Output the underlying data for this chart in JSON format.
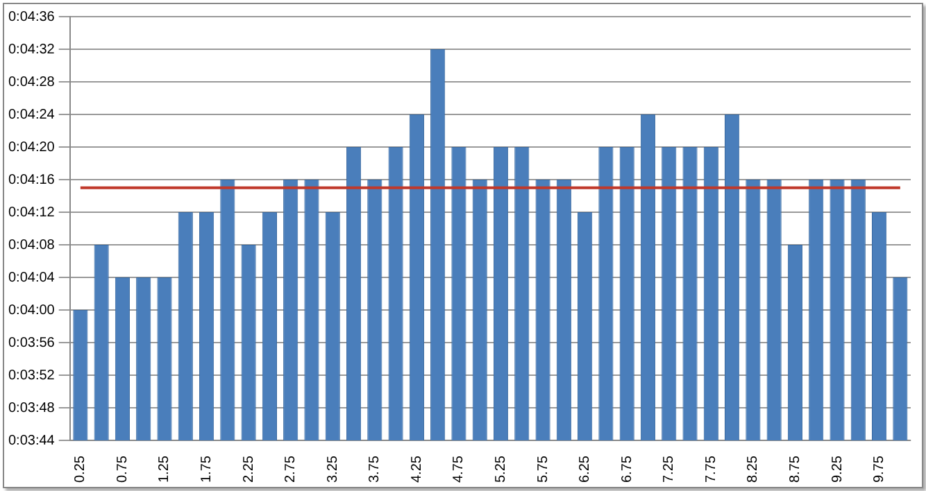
{
  "chart_data": {
    "type": "bar",
    "categories": [
      "0.25",
      null,
      "0.75",
      null,
      "1.25",
      null,
      "1.75",
      null,
      "2.25",
      null,
      "2.75",
      null,
      "3.25",
      null,
      "3.75",
      null,
      "4.25",
      null,
      "4.75",
      null,
      "5.25",
      null,
      "5.75",
      null,
      "6.25",
      null,
      "6.75",
      null,
      "7.25",
      null,
      "7.75",
      null,
      "8.25",
      null,
      "8.75",
      null,
      "9.25",
      null,
      "9.75",
      null
    ],
    "values": [
      240,
      248,
      244,
      244,
      244,
      252,
      252,
      256,
      248,
      252,
      256,
      256,
      252,
      260,
      256,
      260,
      264,
      272,
      260,
      256,
      260,
      260,
      256,
      256,
      252,
      260,
      260,
      264,
      260,
      260,
      260,
      264,
      256,
      256,
      248,
      256,
      256,
      256,
      252,
      244
    ],
    "color": "#4a7ebb",
    "ylim": [
      224,
      276
    ],
    "yticks": [
      {
        "value": 224,
        "label": "0:03:44"
      },
      {
        "value": 228,
        "label": "0:03:48"
      },
      {
        "value": 232,
        "label": "0:03:52"
      },
      {
        "value": 236,
        "label": "0:03:56"
      },
      {
        "value": 240,
        "label": "0:04:00"
      },
      {
        "value": 244,
        "label": "0:04:04"
      },
      {
        "value": 248,
        "label": "0:04:08"
      },
      {
        "value": 252,
        "label": "0:04:12"
      },
      {
        "value": 256,
        "label": "0:04:16"
      },
      {
        "value": 260,
        "label": "0:04:20"
      },
      {
        "value": 264,
        "label": "0:04:24"
      },
      {
        "value": 268,
        "label": "0:04:28"
      },
      {
        "value": 272,
        "label": "0:04:32"
      },
      {
        "value": 276,
        "label": "0:04:36"
      }
    ],
    "ref_lines": [
      {
        "axis": "y",
        "value": 255,
        "color": "#c0392b"
      }
    ],
    "grid": "y"
  }
}
